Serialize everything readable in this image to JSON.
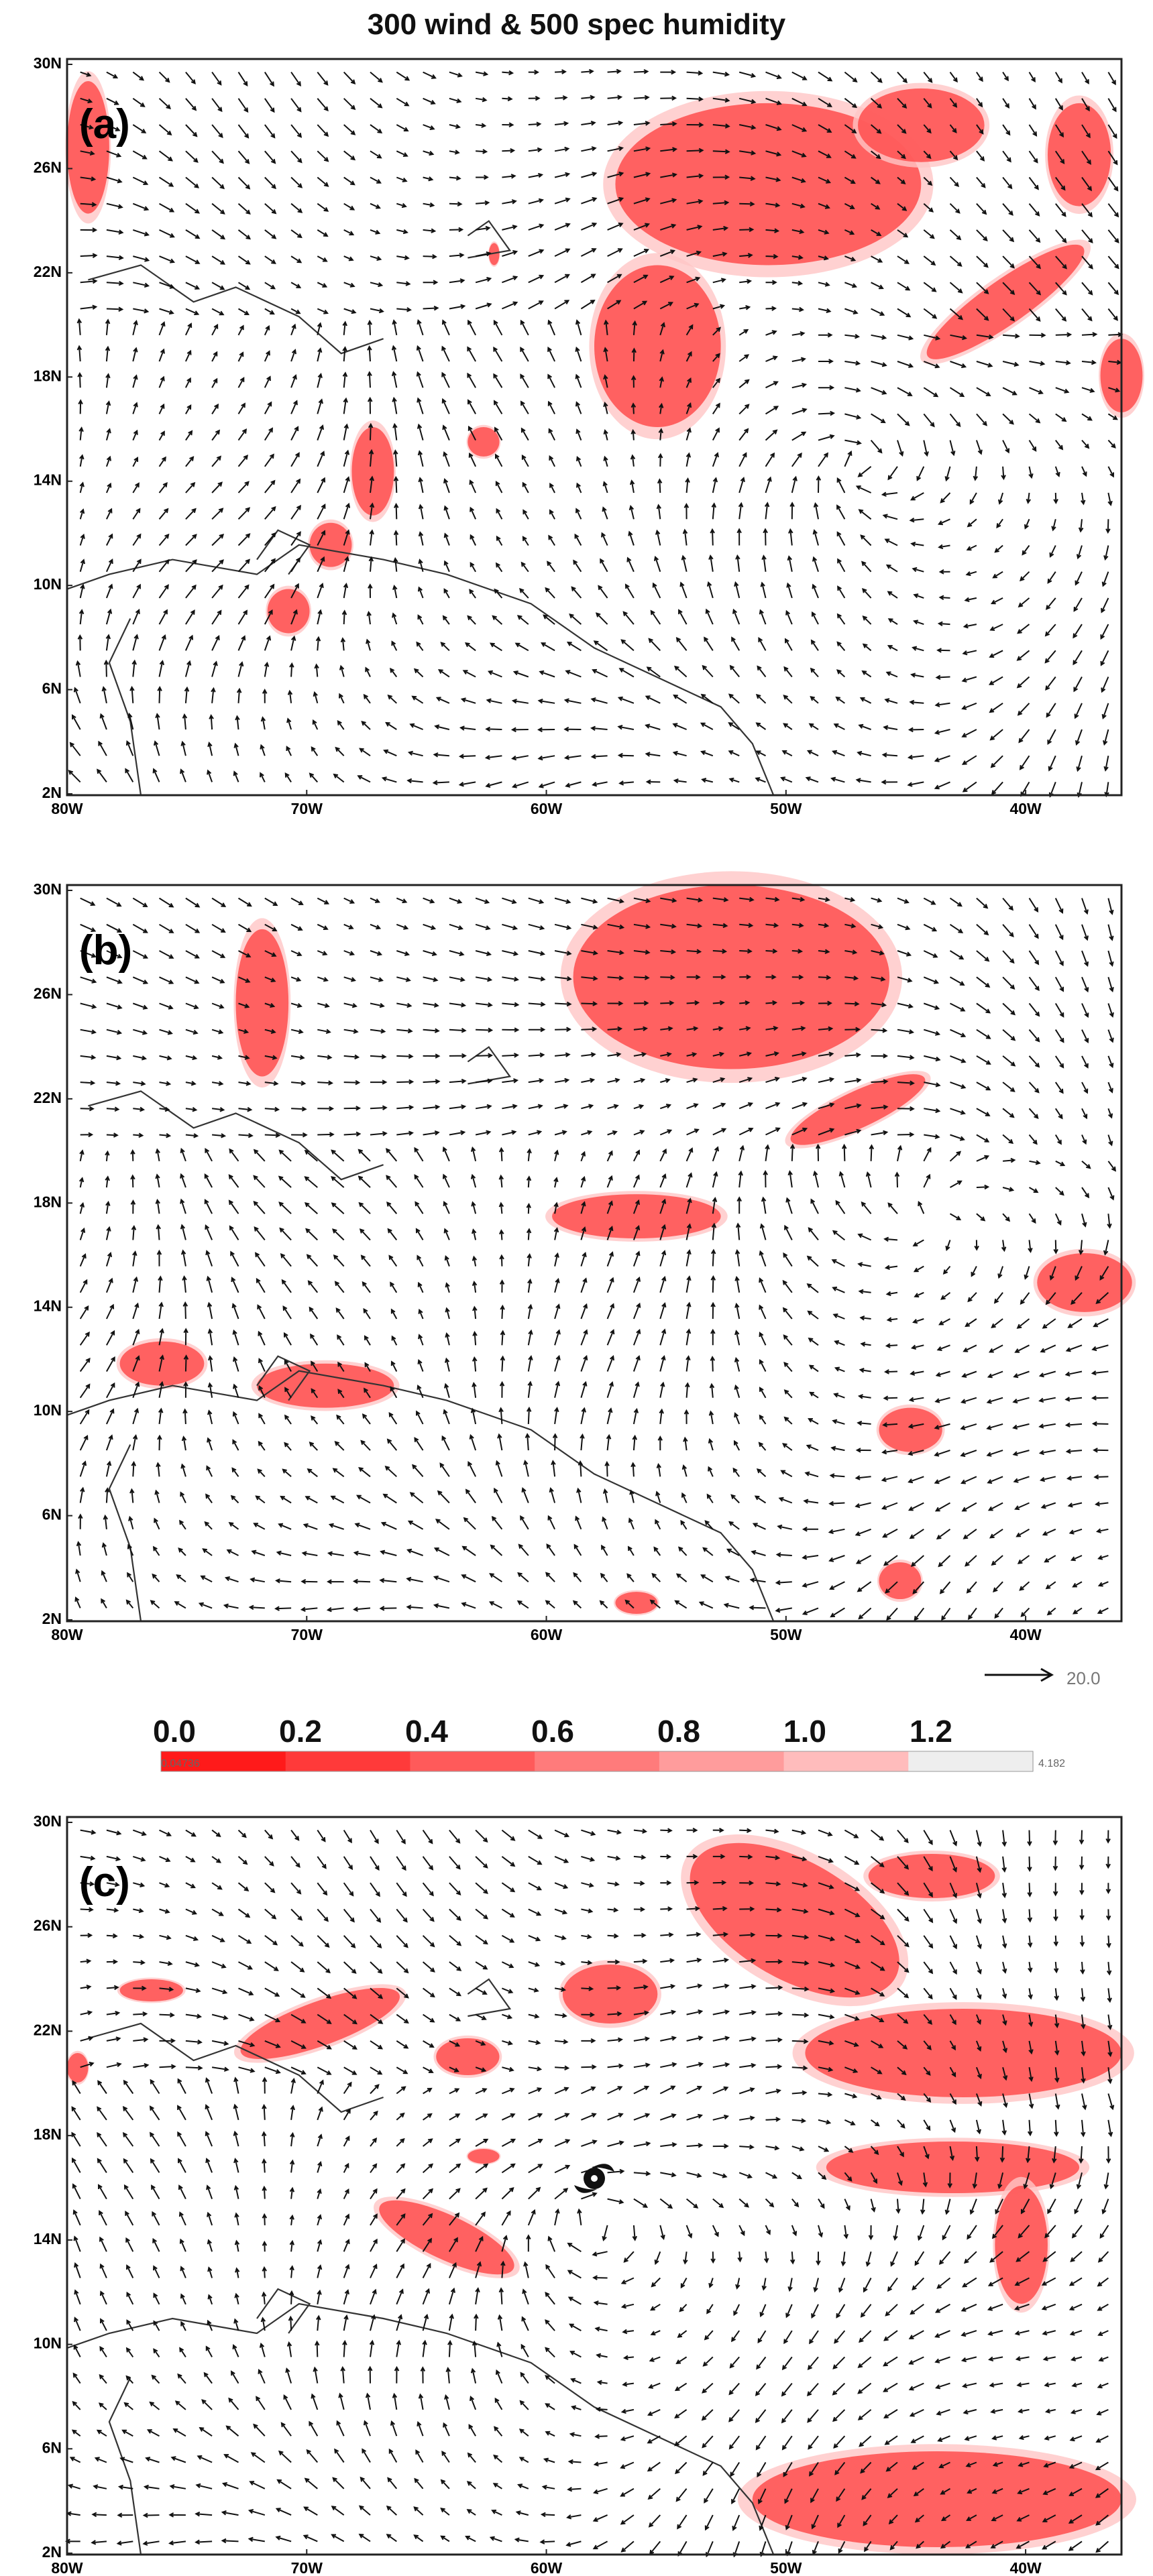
{
  "title": "300 wind & 500 spec humidity",
  "panels": [
    {
      "label": "(a)"
    },
    {
      "label": "(b)"
    },
    {
      "label": "(c)"
    }
  ],
  "axes": {
    "lat_ticks": [
      "30N",
      "26N",
      "22N",
      "18N",
      "14N",
      "10N",
      "6N",
      "2N"
    ],
    "lon_ticks": [
      "80W",
      "70W",
      "60W",
      "50W",
      "40W"
    ]
  },
  "vector_key": {
    "label": "20.0"
  },
  "colorbar": {
    "labels": [
      "0.0",
      "0.2",
      "0.4",
      "0.6",
      "0.8",
      "1.0",
      "1.2"
    ],
    "min_label": "0.04736",
    "max_label": "4.182",
    "colors": [
      "#ff1a1a",
      "#ff3a3a",
      "#ff5a5a",
      "#ff7b7b",
      "#ff9c9c",
      "#ffbcbc",
      "#eeeeee"
    ]
  },
  "marker": {
    "icon": "hurricane-icon"
  },
  "colors": {
    "fill": "#ff4d4d",
    "frame": "#222222",
    "coast": "#333333",
    "arrow": "#111111"
  }
}
